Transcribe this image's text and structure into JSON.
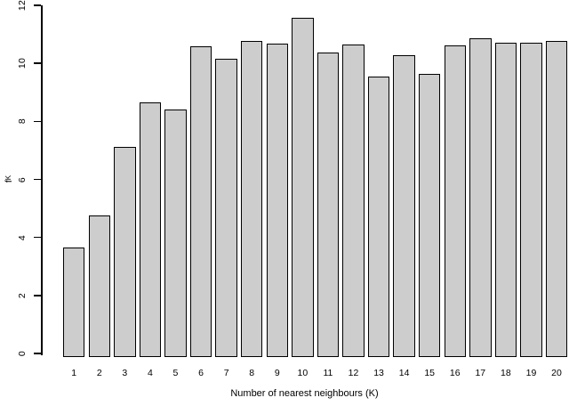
{
  "figure": {
    "background": "#ffffff",
    "text_color": "#000000"
  },
  "chart_data": {
    "type": "bar",
    "title": "",
    "xlabel": "Number of nearest neighbours (K)",
    "ylabel": {
      "base": "f",
      "subscript": "K"
    },
    "categories": [
      "1",
      "2",
      "3",
      "4",
      "5",
      "6",
      "7",
      "8",
      "9",
      "10",
      "11",
      "12",
      "13",
      "14",
      "15",
      "16",
      "17",
      "18",
      "19",
      "20"
    ],
    "values": [
      3.65,
      4.77,
      7.13,
      8.64,
      8.42,
      10.58,
      10.15,
      10.78,
      10.67,
      11.56,
      10.37,
      10.66,
      9.53,
      10.29,
      9.64,
      10.62,
      10.87,
      10.7,
      10.72,
      10.77
    ],
    "yticks": [
      "0",
      "2",
      "4",
      "6",
      "8",
      "10",
      "12"
    ],
    "ylim": [
      0,
      12
    ],
    "grid": false,
    "legend": false,
    "bar_fill": "#cdcdcd",
    "bar_border": "#000000",
    "axis_color": "#000000"
  }
}
